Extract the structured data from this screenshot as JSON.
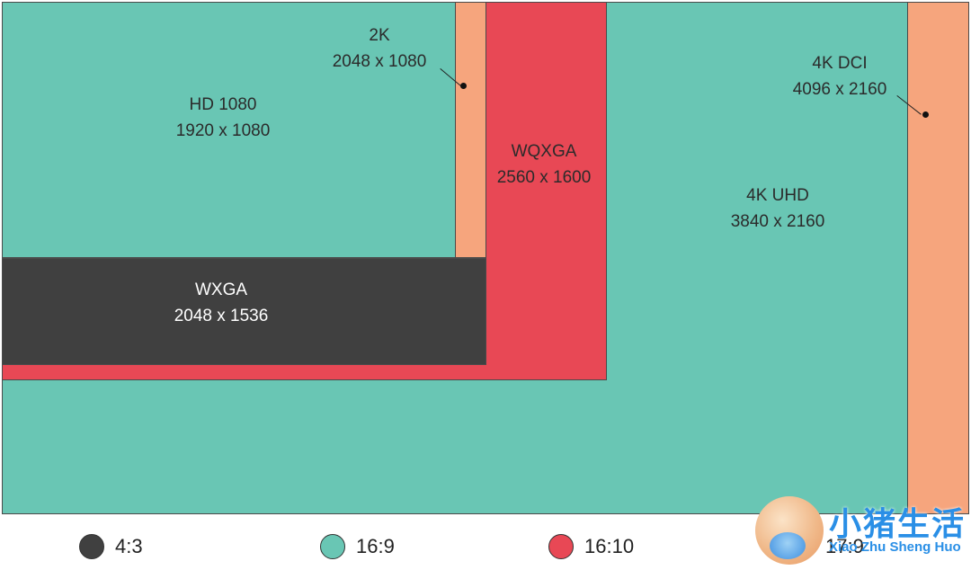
{
  "colors": {
    "ratio_4_3": "#404040",
    "ratio_16_9": "#69c6b4",
    "ratio_16_10": "#e84855",
    "ratio_17_9": "#f6a57d"
  },
  "resolutions": [
    {
      "id": "dci4k",
      "name": "4K DCI",
      "size": "4096 x 2160",
      "ratio": "17:9"
    },
    {
      "id": "uhd4k",
      "name": "4K UHD",
      "size": "3840 x 2160",
      "ratio": "16:9"
    },
    {
      "id": "wqxga",
      "name": "WQXGA",
      "size": "2560 x 1600",
      "ratio": "16:10"
    },
    {
      "id": "k2",
      "name": "2K",
      "size": "2048 x 1080",
      "ratio": "17:9"
    },
    {
      "id": "hd1080",
      "name": "HD 1080",
      "size": "1920 x 1080",
      "ratio": "16:9"
    },
    {
      "id": "wxga",
      "name": "WXGA",
      "size": "2048 x 1536",
      "ratio": "4:3"
    }
  ],
  "legend": [
    {
      "label": "4:3",
      "color": "#404040"
    },
    {
      "label": "16:9",
      "color": "#69c6b4"
    },
    {
      "label": "16:10",
      "color": "#e84855"
    },
    {
      "label": "17:9",
      "color": "#f6a57d"
    }
  ],
  "watermark": {
    "title": "小猪生活",
    "subtitle": "Xiao Zhu Sheng Huo"
  }
}
